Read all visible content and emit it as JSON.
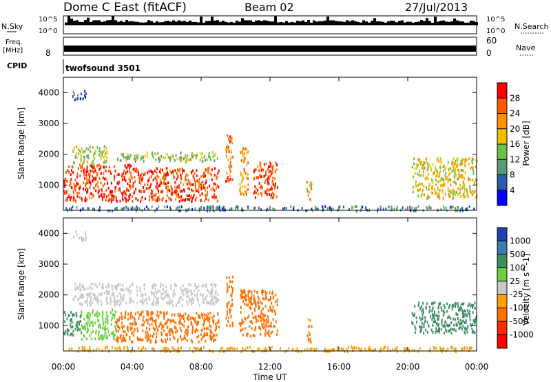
{
  "header": {
    "station": "Dome C East (fitACF)",
    "beam": "Beam 02",
    "date": "27/Jul/2013"
  },
  "strip_labels": {
    "nsky": "N.Sky",
    "nsearch": "N.Search",
    "freq": "Freq.",
    "freq_unit": "[MHz]",
    "nave": "Nave",
    "cpid": "CPID",
    "cpid_value": "twofsound 3501",
    "nsky_ticks": [
      "10^5",
      "10^0"
    ],
    "nsearch_ticks": [
      "10^5",
      "10^0"
    ],
    "freq_ticks": [
      "8"
    ],
    "nave_ticks": [
      "60",
      "0"
    ]
  },
  "colors": {
    "power": [
      "#0000ff",
      "#2a5caa",
      "#5b9a78",
      "#6cc04a",
      "#f0c000",
      "#ff9000",
      "#ff5a00",
      "#ff0000"
    ],
    "velocity": [
      "#2040b0",
      "#3b7bb0",
      "#3f8f5f",
      "#6cd040",
      "#c8c8c8",
      "#ffa000",
      "#ff7000",
      "#ff2a00",
      "#ff0000"
    ]
  },
  "chart_data": [
    {
      "type": "heatmap",
      "name": "power-panel",
      "ylabel": "Slant Range [km]",
      "xlabel": "",
      "x_ticks": [
        "00:00",
        "04:00",
        "08:00",
        "12:00",
        "16:00",
        "20:00",
        "00:00"
      ],
      "x_range_hours": [
        0,
        24
      ],
      "y_ticks": [
        1000,
        2000,
        3000,
        4000
      ],
      "ylim": [
        180,
        4500
      ],
      "colorbar": {
        "label": "Power [dB]",
        "ticks": [
          "4",
          "8",
          "12",
          "16",
          "20",
          "24",
          "28"
        ],
        "range": [
          0,
          32
        ]
      },
      "echo_regions": [
        {
          "t": [
            0.0,
            4.0
          ],
          "range": [
            500,
            1700
          ],
          "value": 28
        },
        {
          "t": [
            4.0,
            9.0
          ],
          "range": [
            500,
            1600
          ],
          "value": 27
        },
        {
          "t": [
            0.5,
            2.5
          ],
          "range": [
            1700,
            2300
          ],
          "value": 16
        },
        {
          "t": [
            3.0,
            9.0
          ],
          "range": [
            1800,
            2100
          ],
          "value": 14
        },
        {
          "t": [
            9.4,
            9.8
          ],
          "range": [
            1000,
            2700
          ],
          "value": 24
        },
        {
          "t": [
            10.2,
            10.7
          ],
          "range": [
            700,
            2300
          ],
          "value": 22
        },
        {
          "t": [
            11.0,
            12.4
          ],
          "range": [
            600,
            1800
          ],
          "value": 26
        },
        {
          "t": [
            14.1,
            14.4
          ],
          "range": [
            500,
            1300
          ],
          "value": 20
        },
        {
          "t": [
            20.2,
            24.0
          ],
          "range": [
            600,
            1900
          ],
          "value": 18
        },
        {
          "t": [
            0.5,
            1.3
          ],
          "range": [
            3800,
            4100
          ],
          "value": 6
        },
        {
          "t": [
            0.0,
            24.0
          ],
          "range": [
            200,
            350
          ],
          "value": 8
        }
      ]
    },
    {
      "type": "heatmap",
      "name": "velocity-panel",
      "ylabel": "Slant Range [km]",
      "xlabel": "Time UT",
      "x_ticks": [
        "00:00",
        "04:00",
        "08:00",
        "12:00",
        "16:00",
        "20:00",
        "00:00"
      ],
      "x_range_hours": [
        0,
        24
      ],
      "y_ticks": [
        1000,
        2000,
        3000,
        4000
      ],
      "ylim": [
        180,
        4500
      ],
      "colorbar": {
        "label": "Velocity [m s^-1]",
        "ticks": [
          "1000",
          "500",
          "100",
          "25",
          "-25",
          "-100",
          "-500",
          "-1000"
        ]
      },
      "echo_regions": [
        {
          "t": [
            0.0,
            1.0
          ],
          "range": [
            700,
            1500
          ],
          "value": 300
        },
        {
          "t": [
            1.0,
            3.0
          ],
          "range": [
            600,
            1600
          ],
          "value": 60
        },
        {
          "t": [
            3.0,
            9.0
          ],
          "range": [
            500,
            1500
          ],
          "value": -200
        },
        {
          "t": [
            0.5,
            9.0
          ],
          "range": [
            1700,
            2400
          ],
          "value": 0
        },
        {
          "t": [
            9.4,
            9.8
          ],
          "range": [
            1000,
            2700
          ],
          "value": -300
        },
        {
          "t": [
            10.2,
            12.4
          ],
          "range": [
            700,
            2200
          ],
          "value": -150
        },
        {
          "t": [
            14.1,
            14.4
          ],
          "range": [
            500,
            1300
          ],
          "value": -100
        },
        {
          "t": [
            20.2,
            24.0
          ],
          "range": [
            800,
            1800
          ],
          "value": 400
        },
        {
          "t": [
            0.5,
            1.3
          ],
          "range": [
            3800,
            4100
          ],
          "value": 0
        },
        {
          "t": [
            0.0,
            24.0
          ],
          "range": [
            200,
            350
          ],
          "value": -50
        }
      ]
    }
  ]
}
